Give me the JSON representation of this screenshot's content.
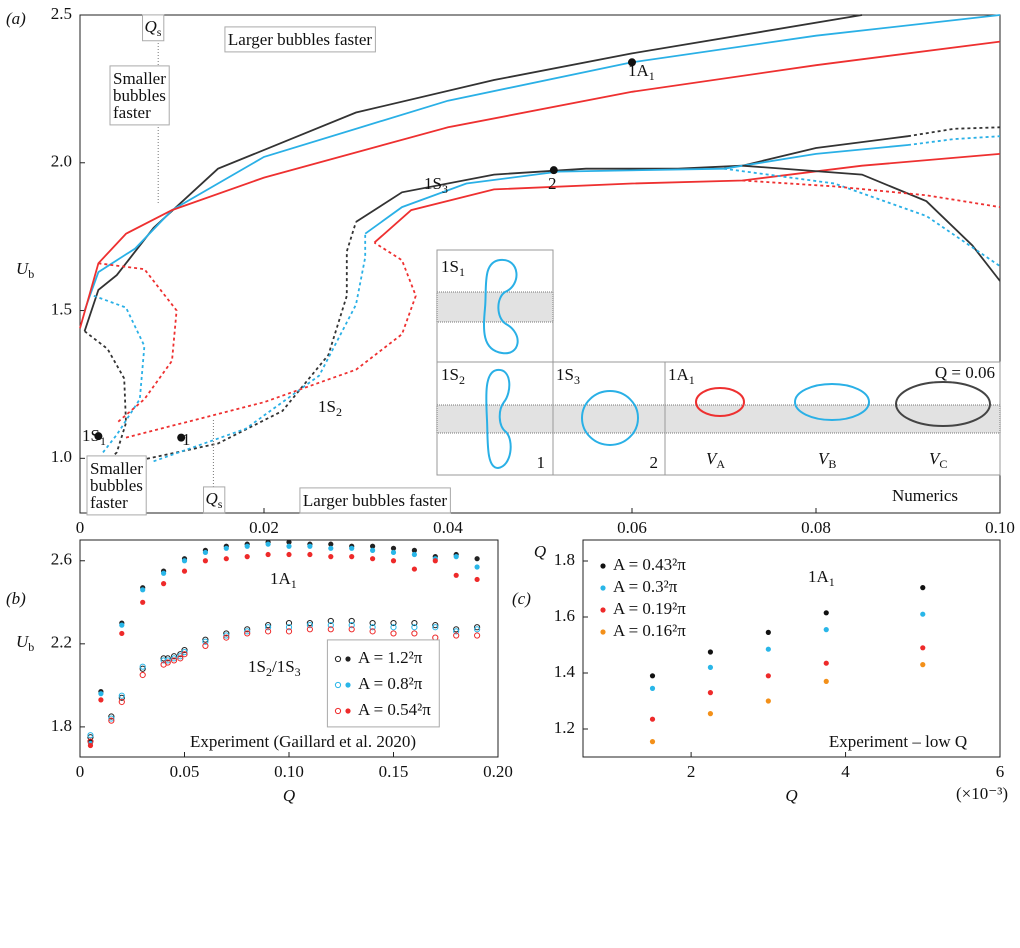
{
  "chart_data": [
    {
      "type": "line",
      "panel_label": "(a)",
      "xlabel": "Q",
      "ylabel": {
        "base": "U",
        "sub": "b"
      },
      "xlim": [
        0,
        0.1
      ],
      "ylim": [
        0.815,
        2.5
      ],
      "xticks": [
        0,
        0.02,
        0.04,
        0.06,
        0.08,
        {
          "value": 0.1,
          "label": "0.10"
        }
      ],
      "yticks": [
        {
          "value": 1,
          "label": "1.0"
        },
        1.5,
        {
          "value": 2,
          "label": "2.0"
        },
        2.5
      ],
      "series": [
        {
          "color": "#333333",
          "dash": false,
          "x": [
            0.0005,
            0.002,
            0.004,
            0.008,
            0.015,
            0.03,
            0.045,
            0.06,
            0.085
          ],
          "values": [
            1.43,
            1.57,
            1.62,
            1.78,
            1.98,
            2.17,
            2.28,
            2.37,
            2.5
          ]
        },
        {
          "color": "#2ab0e6",
          "dash": false,
          "x": [
            0.0005,
            0.002,
            0.006,
            0.01,
            0.02,
            0.04,
            0.06,
            0.08,
            0.1
          ],
          "values": [
            1.5,
            1.63,
            1.71,
            1.84,
            2.02,
            2.21,
            2.34,
            2.43,
            2.5
          ]
        },
        {
          "color": "#ee3030",
          "dash": false,
          "x": [
            0,
            0.002,
            0.005,
            0.01,
            0.02,
            0.04,
            0.06,
            0.08,
            0.1
          ],
          "values": [
            1.44,
            1.66,
            1.76,
            1.84,
            1.95,
            2.12,
            2.24,
            2.33,
            2.41
          ]
        },
        {
          "color": "#333333",
          "dash": true,
          "x": [
            0.0005,
            0.003,
            0.0048,
            0.005,
            0.004,
            0.002
          ],
          "values": [
            1.43,
            1.37,
            1.27,
            1.12,
            1.02,
            0.96
          ]
        },
        {
          "color": "#2ab0e6",
          "dash": true,
          "x": [
            0.0015,
            0.005,
            0.007,
            0.0065,
            0.004,
            0.0025
          ],
          "values": [
            1.55,
            1.51,
            1.38,
            1.2,
            1.08,
            1.02
          ]
        },
        {
          "color": "#ee3030",
          "dash": true,
          "x": [
            0.002,
            0.007,
            0.0105,
            0.01,
            0.007,
            0.004
          ],
          "values": [
            1.66,
            1.64,
            1.5,
            1.33,
            1.2,
            1.12
          ]
        },
        {
          "color": "#333333",
          "dash": true,
          "x": [
            0.006,
            0.015,
            0.022,
            0.027,
            0.029,
            0.029,
            0.03
          ],
          "values": [
            0.99,
            1.05,
            1.16,
            1.35,
            1.55,
            1.7,
            1.8
          ]
        },
        {
          "color": "#333333",
          "dash": false,
          "x": [
            0.03,
            0.035,
            0.045,
            0.055,
            0.065,
            0.072,
            0.08,
            0.09
          ],
          "values": [
            1.8,
            1.9,
            1.96,
            1.98,
            1.98,
            1.99,
            2.05,
            2.09
          ]
        },
        {
          "color": "#333333",
          "dash": true,
          "x": [
            0.09,
            0.095,
            0.1
          ],
          "values": [
            2.09,
            2.115,
            2.12
          ]
        },
        {
          "color": "#2ab0e6",
          "dash": true,
          "x": [
            0.008,
            0.018,
            0.026,
            0.03,
            0.031,
            0.031
          ],
          "values": [
            0.99,
            1.1,
            1.28,
            1.52,
            1.68,
            1.76
          ]
        },
        {
          "color": "#2ab0e6",
          "dash": false,
          "x": [
            0.031,
            0.035,
            0.042,
            0.052,
            0.07,
            0.08,
            0.09
          ],
          "values": [
            1.76,
            1.85,
            1.93,
            1.97,
            1.98,
            2.03,
            2.06
          ]
        },
        {
          "color": "#2ab0e6",
          "dash": true,
          "x": [
            0.09,
            0.095,
            0.1
          ],
          "values": [
            2.06,
            2.08,
            2.09
          ]
        },
        {
          "color": "#ee3030",
          "dash": true,
          "x": [
            0.005,
            0.02,
            0.03,
            0.035,
            0.0365,
            0.035,
            0.032
          ],
          "values": [
            1.07,
            1.19,
            1.3,
            1.42,
            1.55,
            1.67,
            1.73
          ]
        },
        {
          "color": "#ee3030",
          "dash": false,
          "x": [
            0.032,
            0.036,
            0.045,
            0.06,
            0.072,
            0.085,
            0.1
          ],
          "values": [
            1.73,
            1.84,
            1.91,
            1.93,
            1.94,
            1.99,
            2.03
          ]
        },
        {
          "color": "#333333",
          "dash": false,
          "x": [
            0.072,
            0.085,
            0.092,
            0.097,
            0.1
          ],
          "values": [
            1.99,
            1.96,
            1.87,
            1.72,
            1.6
          ]
        },
        {
          "color": "#2ab0e6",
          "dash": true,
          "x": [
            0.07,
            0.082,
            0.092,
            0.1
          ],
          "values": [
            1.98,
            1.93,
            1.82,
            1.65
          ]
        },
        {
          "color": "#ee3030",
          "dash": true,
          "x": [
            0.072,
            0.082,
            0.092,
            0.1
          ],
          "values": [
            1.94,
            1.92,
            1.89,
            1.85
          ]
        }
      ],
      "points": {
        "color": "#111111",
        "x": [
          0.06,
          0.0515,
          0.011,
          0.002
        ],
        "values": [
          2.34,
          1.975,
          1.07,
          1.075
        ]
      },
      "curve_labels": [
        {
          "base": "1A",
          "sub": "1"
        },
        "2",
        "1",
        {
          "base": "1S",
          "sub": "1"
        },
        {
          "base": "1S",
          "sub": "3"
        },
        {
          "base": "1S",
          "sub": "2"
        }
      ],
      "qs_lines": {
        "x": [
          0.0085,
          0.0145
        ],
        "labels": [
          {
            "base": "Q",
            "sub": "s"
          },
          {
            "base": "Q",
            "sub": "s"
          }
        ]
      },
      "annotations": [
        "Larger bubbles faster",
        [
          "Smaller",
          "bubbles",
          "faster"
        ],
        [
          "Smaller",
          "bubbles",
          "faster"
        ],
        "Larger bubbles faster",
        "Numerics"
      ],
      "inset_labels": [
        {
          "base": "1S",
          "sub": "1"
        },
        {
          "base": "1S",
          "sub": "2"
        },
        {
          "base": "1S",
          "sub": "3"
        },
        {
          "base": "1A",
          "sub": "1"
        },
        "Q = 0.06",
        "1",
        "2",
        {
          "base": "V",
          "sub": "A"
        },
        {
          "base": "V",
          "sub": "B"
        },
        {
          "base": "V",
          "sub": "C"
        }
      ]
    },
    {
      "type": "scatter",
      "panel_label": "(b)",
      "xlabel": "Q",
      "ylabel": {
        "base": "U",
        "sub": "b"
      },
      "xlim": [
        0,
        0.2
      ],
      "ylim": [
        1.655,
        2.7
      ],
      "xticks": [
        0,
        0.05,
        {
          "value": 0.1,
          "label": "0.10"
        },
        0.15,
        {
          "value": 0.2,
          "label": "0.20"
        }
      ],
      "yticks": [
        1.8,
        2.2,
        2.6
      ],
      "legend": "lower right",
      "x": [
        0.005,
        0.01,
        0.02,
        0.03,
        0.04,
        0.05,
        0.06,
        0.07,
        0.08,
        0.09,
        0.1,
        0.11,
        0.12,
        0.13,
        0.14,
        0.15,
        0.16,
        0.17,
        0.18,
        0.19
      ],
      "x_lower": [
        0.005,
        0.015,
        0.02,
        0.03,
        0.04,
        0.042,
        0.045,
        0.048,
        0.05,
        0.06,
        0.07,
        0.08,
        0.09,
        0.1,
        0.11,
        0.12,
        0.13,
        0.14,
        0.15,
        0.16,
        0.17,
        0.18,
        0.19
      ],
      "series": [
        {
          "name": "A = 1.2²π",
          "color": "#222222",
          "values": [
            1.73,
            1.97,
            2.3,
            2.47,
            2.55,
            2.61,
            2.65,
            2.67,
            2.68,
            2.69,
            2.69,
            2.68,
            2.68,
            2.67,
            2.67,
            2.66,
            2.65,
            2.62,
            2.63,
            2.61
          ],
          "values_lower": [
            1.75,
            1.85,
            1.94,
            2.08,
            2.13,
            2.13,
            2.14,
            2.15,
            2.17,
            2.22,
            2.25,
            2.27,
            2.29,
            2.3,
            2.3,
            2.31,
            2.31,
            2.3,
            2.3,
            2.3,
            2.29,
            2.27,
            2.28
          ]
        },
        {
          "name": "A = 0.8²π",
          "color": "#29b6e8",
          "values": [
            1.72,
            1.96,
            2.29,
            2.46,
            2.54,
            2.6,
            2.64,
            2.66,
            2.67,
            2.68,
            2.67,
            2.67,
            2.66,
            2.66,
            2.65,
            2.64,
            2.63,
            2.61,
            2.62,
            2.57
          ],
          "values_lower": [
            1.76,
            1.84,
            1.95,
            2.09,
            2.12,
            2.12,
            2.13,
            2.14,
            2.16,
            2.21,
            2.24,
            2.26,
            2.28,
            2.28,
            2.29,
            2.29,
            2.29,
            2.28,
            2.28,
            2.28,
            2.28,
            2.26,
            2.27
          ]
        },
        {
          "name": "A = 0.54²π",
          "color": "#ee2a2a",
          "values": [
            1.71,
            1.93,
            2.25,
            2.4,
            2.49,
            2.55,
            2.6,
            2.61,
            2.62,
            2.63,
            2.63,
            2.63,
            2.62,
            2.62,
            2.61,
            2.6,
            2.56,
            2.6,
            2.53,
            2.51
          ],
          "values_lower": [
            1.73,
            1.83,
            1.92,
            2.05,
            2.1,
            2.11,
            2.12,
            2.13,
            2.15,
            2.19,
            2.23,
            2.25,
            2.26,
            2.26,
            2.27,
            2.27,
            2.27,
            2.26,
            2.25,
            2.25,
            2.23,
            2.24,
            2.24
          ]
        }
      ],
      "branch_labels": [
        {
          "base": "1A",
          "sub": "1"
        },
        [
          {
            "base": "1S",
            "sub": "2"
          },
          {
            "base": "/1S",
            "sub": "3"
          }
        ]
      ],
      "note": "Experiment (Gaillard et al. 2020)"
    },
    {
      "type": "scatter",
      "panel_label": "(c)",
      "xlabel": "Q",
      "x_multiplier": "(×10⁻³)",
      "xlim": [
        0.6,
        6
      ],
      "ylim": [
        1.1,
        1.875
      ],
      "xticks": [
        2,
        4,
        6
      ],
      "yticks": [
        1.2,
        1.4,
        1.6,
        1.8
      ],
      "legend": "upper left",
      "x": [
        1.5,
        2.25,
        3,
        3.75,
        5
      ],
      "series": [
        {
          "name": "A = 0.43²π",
          "color": "#111111",
          "values": [
            1.39,
            1.475,
            1.545,
            1.615,
            1.705
          ]
        },
        {
          "name": "A = 0.3²π",
          "color": "#29b6e8",
          "values": [
            1.345,
            1.42,
            1.485,
            1.555,
            1.61
          ]
        },
        {
          "name": "A = 0.19²π",
          "color": "#ee2a2a",
          "values": [
            1.235,
            1.33,
            1.39,
            1.435,
            1.49
          ]
        },
        {
          "name": "A = 0.16²π",
          "color": "#f39019",
          "values": [
            1.155,
            1.255,
            1.3,
            1.37,
            1.43
          ]
        }
      ],
      "branch_labels": [
        {
          "base": "1A",
          "sub": "1"
        }
      ],
      "note": "Experiment – low Q"
    }
  ]
}
